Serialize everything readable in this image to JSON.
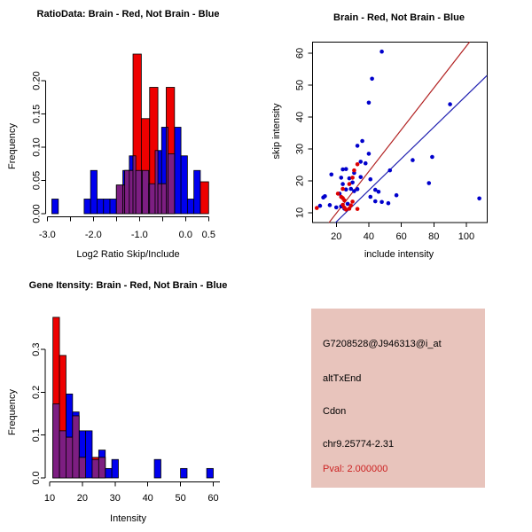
{
  "figure": {
    "background": "#FFFFFF"
  },
  "colors": {
    "hist_red": "#EE0000",
    "hist_blue": "#0000EE",
    "overlap_purple": "#7D1E82",
    "point_blue": "#0000CC",
    "point_red": "#DD0000",
    "line_red": "#B22222",
    "line_blue": "#2020B0",
    "axis_black": "#000000",
    "info_bg": "#E8C4BC",
    "pval_red": "#CC2222"
  },
  "chart_data": [
    {
      "id": "ratio_hist",
      "type": "bar",
      "subtype": "overlaid-histograms",
      "title": "RatioData: Brain - Red, Not Brain - Blue",
      "xlabel": "Log2 Ratio Skip/Include",
      "ylabel": "Frequency",
      "xlim": [
        -3.0,
        0.5
      ],
      "ylim": [
        0.0,
        0.2
      ],
      "grid": false,
      "xticks": [
        {
          "v": -3.0,
          "label": "-3.0"
        },
        {
          "v": -2.5,
          "label": ""
        },
        {
          "v": -2.0,
          "label": "-2.0"
        },
        {
          "v": -1.5,
          "label": ""
        },
        {
          "v": -1.0,
          "label": "-1.0"
        },
        {
          "v": -0.5,
          "label": ""
        },
        {
          "v": 0.0,
          "label": "0.0"
        },
        {
          "v": 0.5,
          "label": "0.5"
        }
      ],
      "yticks": [
        {
          "v": 0.0,
          "label": "0.00"
        },
        {
          "v": 0.05,
          "label": "0.05"
        },
        {
          "v": 0.1,
          "label": "0.10"
        },
        {
          "v": 0.15,
          "label": "0.15"
        },
        {
          "v": 0.2,
          "label": "0.20"
        }
      ],
      "series": [
        {
          "name": "Not Brain (blue)",
          "color_key": "hist_blue",
          "bin_width": 0.14,
          "bars": [
            [
              -2.9,
              0.022
            ],
            [
              -2.2,
              0.022
            ],
            [
              -2.06,
              0.065
            ],
            [
              -1.92,
              0.022
            ],
            [
              -1.78,
              0.022
            ],
            [
              -1.64,
              0.022
            ],
            [
              -1.5,
              0.043
            ],
            [
              -1.36,
              0.065
            ],
            [
              -1.22,
              0.087
            ],
            [
              -1.08,
              0.065
            ],
            [
              -0.94,
              0.065
            ],
            [
              -0.8,
              0.045
            ],
            [
              -0.66,
              0.095
            ],
            [
              -0.52,
              0.13
            ],
            [
              -0.38,
              0.09
            ],
            [
              -0.24,
              0.13
            ],
            [
              -0.1,
              0.087
            ],
            [
              0.04,
              0.022
            ],
            [
              0.18,
              0.065
            ]
          ]
        },
        {
          "name": "Brain (red)",
          "color_key": "hist_red",
          "bin_width": 0.18,
          "bars": [
            [
              -1.5,
              0.043
            ],
            [
              -1.32,
              0.065
            ],
            [
              -1.14,
              0.24
            ],
            [
              -0.96,
              0.143
            ],
            [
              -0.78,
              0.19
            ],
            [
              -0.6,
              0.045
            ],
            [
              -0.42,
              0.19
            ],
            [
              0.32,
              0.048
            ]
          ]
        }
      ]
    },
    {
      "id": "scatter",
      "type": "scatter",
      "title": "Brain - Red, Not Brain - Blue",
      "xlabel": "include intensity",
      "ylabel": "skip intensity",
      "xlim": [
        5,
        113
      ],
      "ylim": [
        7,
        63.5
      ],
      "grid": false,
      "xticks": [
        {
          "v": 20,
          "label": "20"
        },
        {
          "v": 40,
          "label": "40"
        },
        {
          "v": 60,
          "label": "60"
        },
        {
          "v": 80,
          "label": "80"
        },
        {
          "v": 100,
          "label": "100"
        }
      ],
      "yticks": [
        {
          "v": 10,
          "label": "10"
        },
        {
          "v": 20,
          "label": "20"
        },
        {
          "v": 30,
          "label": "30"
        },
        {
          "v": 40,
          "label": "40"
        },
        {
          "v": 50,
          "label": "50"
        },
        {
          "v": 60,
          "label": "60"
        }
      ],
      "series": [
        {
          "name": "Not Brain (blue)",
          "color_key": "point_blue",
          "points": [
            [
              48,
              60.5
            ],
            [
              42,
              52
            ],
            [
              40,
              44.5
            ],
            [
              90,
              44
            ],
            [
              36,
              32.5
            ],
            [
              33,
              31
            ],
            [
              40,
              28.5
            ],
            [
              79,
              27.5
            ],
            [
              67,
              26.5
            ],
            [
              35,
              26
            ],
            [
              38,
              25.5
            ],
            [
              53,
              23.3
            ],
            [
              24,
              23.6
            ],
            [
              26,
              23.7
            ],
            [
              17,
              22
            ],
            [
              31,
              22.5
            ],
            [
              23,
              21
            ],
            [
              28,
              20.8
            ],
            [
              41,
              20.5
            ],
            [
              35,
              21.2
            ],
            [
              30,
              19.5
            ],
            [
              24,
              19
            ],
            [
              77,
              19.3
            ],
            [
              29,
              17.5
            ],
            [
              26,
              17.3
            ],
            [
              33,
              17.4
            ],
            [
              31,
              16.8
            ],
            [
              44,
              17.2
            ],
            [
              46,
              16.6
            ],
            [
              57,
              15.5
            ],
            [
              22,
              16
            ],
            [
              41,
              15
            ],
            [
              44,
              13.6
            ],
            [
              48,
              13.4
            ],
            [
              52,
              13
            ],
            [
              108,
              14.5
            ],
            [
              12,
              14.8
            ],
            [
              13,
              15.2
            ],
            [
              10,
              12.2
            ],
            [
              16,
              12.4
            ],
            [
              20,
              11.7
            ],
            [
              23,
              12
            ],
            [
              25,
              11.3
            ],
            [
              27,
              12.8
            ]
          ]
        },
        {
          "name": "Brain (red)",
          "color_key": "point_red",
          "points": [
            [
              8,
              11.5
            ],
            [
              33,
              25.2
            ],
            [
              31,
              23.3
            ],
            [
              30,
              21
            ],
            [
              28,
              19
            ],
            [
              24,
              17.5
            ],
            [
              21,
              16
            ],
            [
              23,
              15
            ],
            [
              24,
              14.6
            ],
            [
              25,
              13.9
            ],
            [
              30,
              13.5
            ],
            [
              24,
              12.5
            ],
            [
              25,
              11.6
            ],
            [
              26,
              11
            ],
            [
              28,
              11.3
            ],
            [
              29,
              12.3
            ],
            [
              33,
              11.2
            ]
          ]
        }
      ],
      "lines": [
        {
          "name": "brain-fit",
          "color_key": "line_red",
          "x1": 15.5,
          "y1": 6.9,
          "x2": 102,
          "y2": 63.5
        },
        {
          "name": "not-brain-fit",
          "color_key": "line_blue",
          "x1": 19.5,
          "y1": 6.9,
          "x2": 112.7,
          "y2": 53
        }
      ]
    },
    {
      "id": "gene_hist",
      "type": "bar",
      "subtype": "overlaid-histograms",
      "title": "Gene Itensity: Brain - Red, Not Brain - Blue",
      "xlabel": "Intensity",
      "ylabel": "Frequency",
      "xlim": [
        10,
        62
      ],
      "ylim": [
        0.0,
        0.375
      ],
      "grid": false,
      "xticks": [
        {
          "v": 10,
          "label": "10"
        },
        {
          "v": 20,
          "label": "20"
        },
        {
          "v": 30,
          "label": "30"
        },
        {
          "v": 40,
          "label": "40"
        },
        {
          "v": 50,
          "label": "50"
        },
        {
          "v": 60,
          "label": "60"
        }
      ],
      "yticks": [
        {
          "v": 0.0,
          "label": "0.0"
        },
        {
          "v": 0.1,
          "label": "0.1"
        },
        {
          "v": 0.2,
          "label": "0.2"
        },
        {
          "v": 0.3,
          "label": "0.3"
        }
      ],
      "series": [
        {
          "name": "Not Brain (blue)",
          "color_key": "hist_blue",
          "bin_width": 2,
          "bars": [
            [
              11,
              0.173
            ],
            [
              13,
              0.11
            ],
            [
              15,
              0.196
            ],
            [
              17,
              0.154
            ],
            [
              19,
              0.11
            ],
            [
              21,
              0.11
            ],
            [
              23,
              0.043
            ],
            [
              25,
              0.065
            ],
            [
              27,
              0.022
            ],
            [
              29,
              0.043
            ],
            [
              42,
              0.043
            ],
            [
              50,
              0.022
            ],
            [
              58,
              0.022
            ]
          ]
        },
        {
          "name": "Brain (red)",
          "color_key": "hist_red",
          "bin_width": 2,
          "bars": [
            [
              11,
              0.375
            ],
            [
              13,
              0.286
            ],
            [
              15,
              0.095
            ],
            [
              17,
              0.145
            ],
            [
              19,
              0.048
            ],
            [
              23,
              0.048
            ],
            [
              25,
              0.048
            ]
          ]
        }
      ]
    }
  ],
  "info_box": {
    "probe_id": "G7208528@J946313@i_at",
    "event_type": "altTxEnd",
    "gene": "Cdon",
    "locus": "chr9.25774-2.31",
    "pval": "Pval: 2.000000"
  }
}
